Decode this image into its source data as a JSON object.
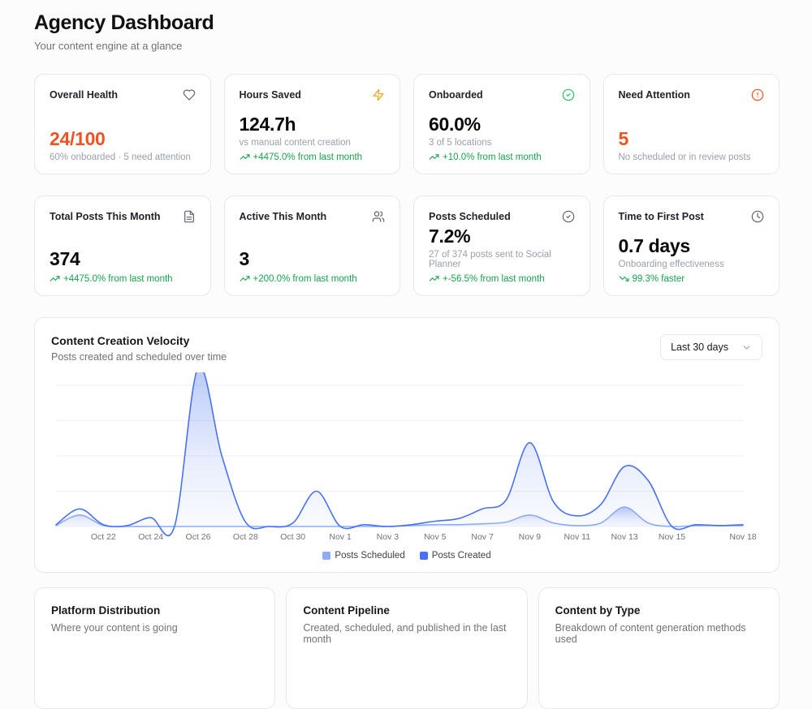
{
  "page": {
    "title": "Agency Dashboard",
    "subtitle": "Your content engine at a glance"
  },
  "colors": {
    "accent_orange": "#f05223",
    "trend_green": "#16a34a",
    "amber": "#f59e0b",
    "success_green": "#22c55e",
    "icon_gray": "#5f6470"
  },
  "stat_cards": [
    {
      "title": "Overall Health",
      "icon": "heart-icon",
      "icon_color": "#5f6470",
      "value": "24/100",
      "value_color": "#f05223",
      "subtitle": "60% onboarded · 5 need attention"
    },
    {
      "title": "Hours Saved",
      "icon": "zap-icon",
      "icon_color": "#f59e0b",
      "value": "124.7h",
      "subtitle": "vs manual content creation",
      "trend": "+4475.0% from last month",
      "trend_direction": "up"
    },
    {
      "title": "Onboarded",
      "icon": "check-circle-icon",
      "icon_color": "#22c55e",
      "value": "60.0%",
      "subtitle": "3 of 5 locations",
      "trend": "+10.0% from last month",
      "trend_direction": "up"
    },
    {
      "title": "Need Attention",
      "icon": "alert-circle-icon",
      "icon_color": "#f05223",
      "value": "5",
      "value_color": "#f05223",
      "subtitle": "No scheduled or in review posts"
    },
    {
      "title": "Total Posts This Month",
      "icon": "file-text-icon",
      "icon_color": "#5f6470",
      "value": "374",
      "trend": "+4475.0% from last month",
      "trend_direction": "up"
    },
    {
      "title": "Active This Month",
      "icon": "users-icon",
      "icon_color": "#5f6470",
      "value": "3",
      "trend": "+200.0% from last month",
      "trend_direction": "up"
    },
    {
      "title": "Posts Scheduled",
      "icon": "check-circle-icon",
      "icon_color": "#5f6470",
      "value": "7.2%",
      "subtitle": "27 of 374 posts sent to Social Planner",
      "trend": "+-56.5% from last month",
      "trend_direction": "up"
    },
    {
      "title": "Time to First Post",
      "icon": "clock-icon",
      "icon_color": "#5f6470",
      "value": "0.7 days",
      "subtitle": "Onboarding effectiveness",
      "trend": "99.3% faster",
      "trend_direction": "down"
    }
  ],
  "velocity": {
    "title": "Content Creation Velocity",
    "subtitle": "Posts created and scheduled over time",
    "range_label": "Last 30 days"
  },
  "chart_data": {
    "type": "area",
    "title": "Content Creation Velocity",
    "x": [
      "Oct 20",
      "Oct 21",
      "Oct 22",
      "Oct 23",
      "Oct 24",
      "Oct 25",
      "Oct 26",
      "Oct 27",
      "Oct 28",
      "Oct 29",
      "Oct 30",
      "Oct 31",
      "Nov 1",
      "Nov 2",
      "Nov 3",
      "Nov 4",
      "Nov 5",
      "Nov 6",
      "Nov 7",
      "Nov 8",
      "Nov 9",
      "Nov 10",
      "Nov 11",
      "Nov 12",
      "Nov 13",
      "Nov 14",
      "Nov 15",
      "Nov 16",
      "Nov 17",
      "Nov 18"
    ],
    "series": [
      {
        "name": "Posts Scheduled",
        "color": "#8fadf6",
        "values": [
          1,
          13,
          1,
          0,
          0,
          0,
          0,
          0,
          0,
          0,
          0,
          0,
          0,
          0,
          0,
          1,
          2,
          2,
          3,
          5,
          13,
          4,
          1,
          4,
          22,
          4,
          0,
          1,
          1,
          1
        ]
      },
      {
        "name": "Posts Created",
        "color": "#4a72f0",
        "values": [
          2,
          20,
          2,
          1,
          10,
          0,
          180,
          80,
          5,
          0,
          4,
          40,
          0,
          2,
          0,
          2,
          6,
          9,
          20,
          30,
          95,
          28,
          12,
          25,
          68,
          52,
          0,
          2,
          1,
          2
        ]
      }
    ],
    "xticks": [
      {
        "label": "Oct 22",
        "i": 2
      },
      {
        "label": "Oct 24",
        "i": 4
      },
      {
        "label": "Oct 26",
        "i": 6
      },
      {
        "label": "Oct 28",
        "i": 8
      },
      {
        "label": "Oct 30",
        "i": 10
      },
      {
        "label": "Nov 1",
        "i": 12
      },
      {
        "label": "Nov 3",
        "i": 14
      },
      {
        "label": "Nov 5",
        "i": 16
      },
      {
        "label": "Nov 7",
        "i": 18
      },
      {
        "label": "Nov 9",
        "i": 20
      },
      {
        "label": "Nov 11",
        "i": 22
      },
      {
        "label": "Nov 13",
        "i": 24
      },
      {
        "label": "Nov 15",
        "i": 26
      },
      {
        "label": "Nov 18",
        "i": 29
      }
    ],
    "xlabel": "",
    "ylabel": "",
    "ylim": [
      0,
      160
    ],
    "grid": true,
    "legend_position": "bottom",
    "note": "Posts Created peak on Oct 26 exceeds the visible plot area and is clipped at the top"
  },
  "bottom_cards": [
    {
      "title": "Platform Distribution",
      "subtitle": "Where your content is going"
    },
    {
      "title": "Content Pipeline",
      "subtitle": "Created, scheduled, and published in the last month"
    },
    {
      "title": "Content by Type",
      "subtitle": "Breakdown of content generation methods used"
    }
  ]
}
